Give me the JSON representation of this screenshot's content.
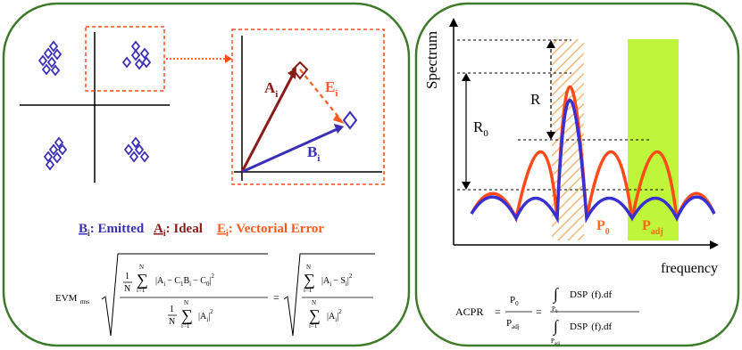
{
  "left_panel": {
    "vectors": {
      "A": "A",
      "A_sub": "i",
      "B": "B",
      "B_sub": "i",
      "E": "E",
      "E_sub": "i"
    },
    "legend": [
      {
        "sym": "B",
        "sub": "i",
        "text": ": Emitted",
        "color": "#3a2fb5"
      },
      {
        "sym": "A",
        "sub": "i",
        "text": ": Ideal",
        "color": "#8b1a1a"
      },
      {
        "sym": "E",
        "sub": "i",
        "text": ": Vectorial Error",
        "color": "#ff5a1f"
      }
    ],
    "formula": {
      "lhs": "EVM",
      "lhs_sub": "rms",
      "one": "1",
      "N": "N",
      "sum": "∑",
      "sum_top": "N",
      "sum_bot": "i=1",
      "num1": "|A",
      "num1_sub": "i",
      "num1_rest": "− C",
      "num1_c1": "1",
      "num1_b": "B",
      "num1_bsub": "i",
      "num1_rest2": "− C",
      "num1_c0": "0",
      "num1_close": "|",
      "sq": "2",
      "den1": "|A",
      "den1_sub": "i",
      "den1_close": "|",
      "eq": "=",
      "num2": "|A",
      "num2_sub": "i",
      "num2_rest": "− S",
      "num2_ssub": "i",
      "num2_close": "|",
      "sum_bot2": "i=1"
    },
    "colors": {
      "frame": "#3d7a2a",
      "dashed": "#ff4d1a",
      "blue": "#3a2fb5",
      "darkred": "#8b1a1a",
      "orange": "#ff5a1f",
      "diamond": "#3a2fb5"
    }
  },
  "right_panel": {
    "ylabel": "Spectrum",
    "xlabel": "frequency",
    "R": "R",
    "R0": "R",
    "R0_sub": "0",
    "P0": "P",
    "P0_sub": "0",
    "Padj": "P",
    "Padj_sub": "adj",
    "formula": {
      "lhs": "ACPR",
      "eq1": "=",
      "p0": "P",
      "p0_sub": "0",
      "padj": "P",
      "padj_sub": "adj",
      "eq2": "=",
      "int": "∫",
      "int_lim_top": "",
      "int_lim_bot1": "P",
      "int_lim_bot1_sub": "0",
      "int_lim_bot2": "P",
      "int_lim_bot2_sub": "adj",
      "dsp": "DSP",
      "f": "(f)",
      "df": ".df"
    },
    "colors": {
      "red": "#ff4a1a",
      "blue": "#3a2fd0",
      "green": "#bff53a",
      "hatch": "#f2b87a"
    }
  }
}
